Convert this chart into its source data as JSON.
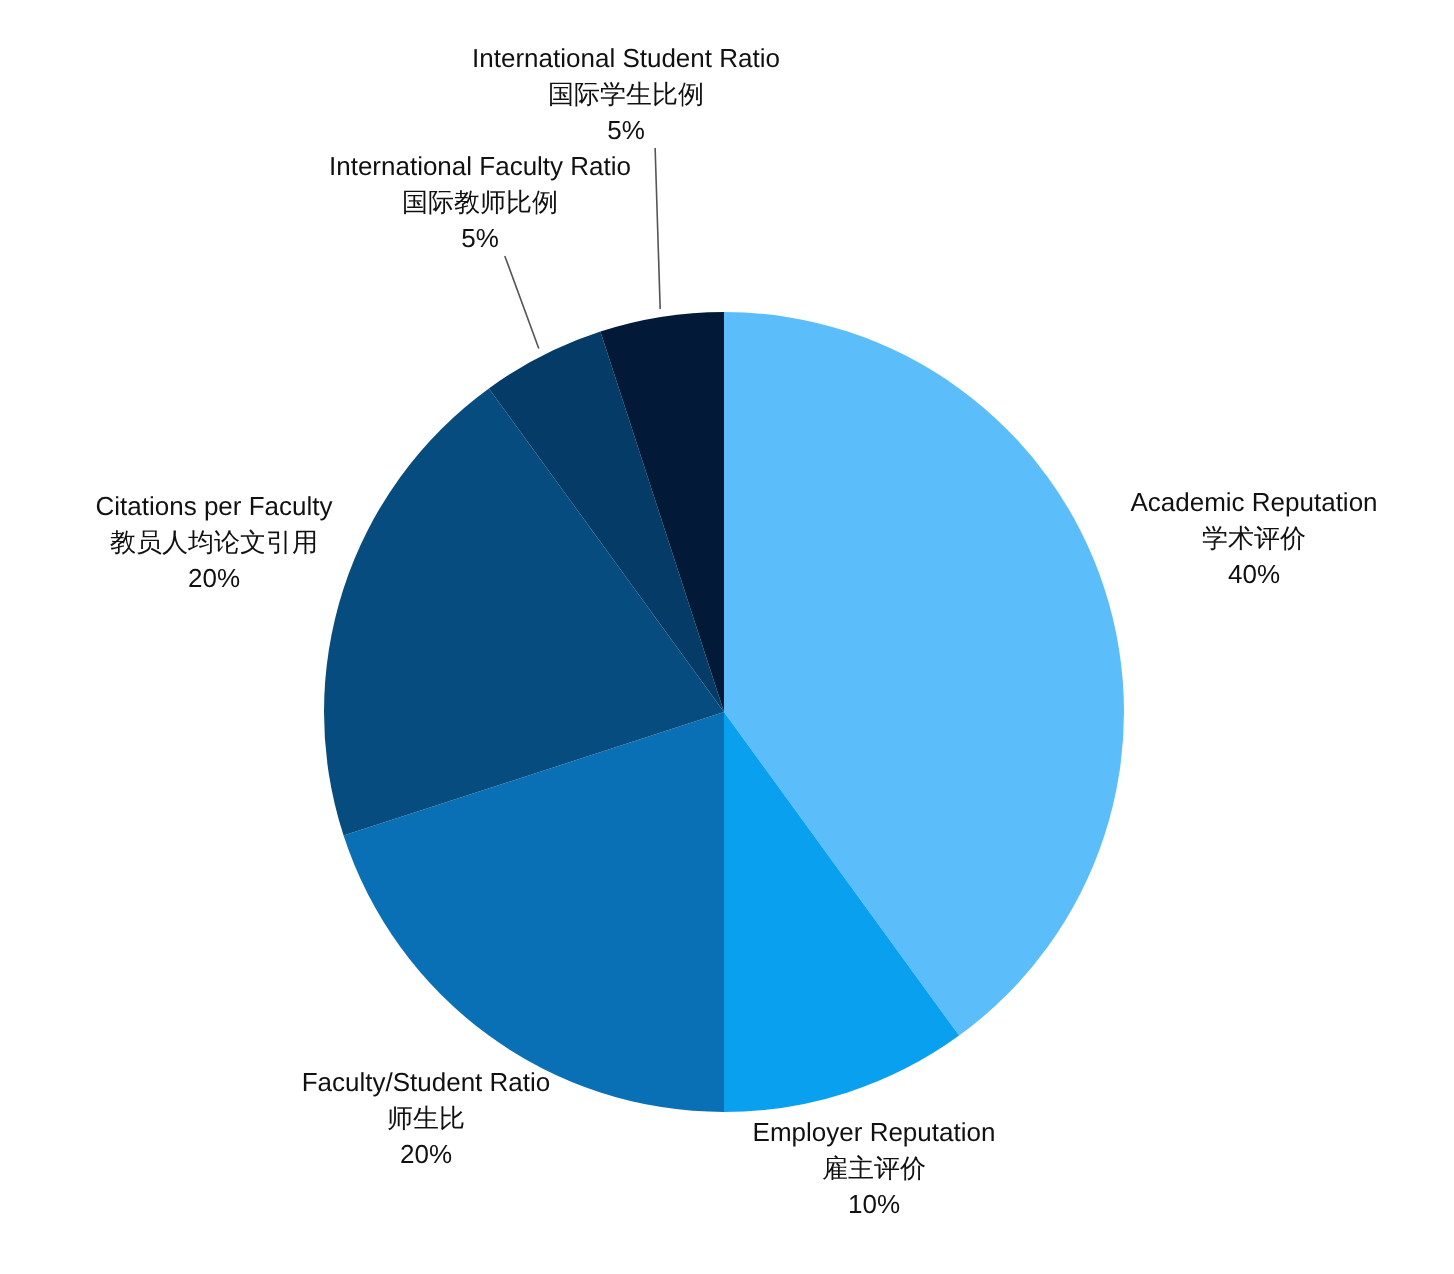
{
  "chart_data": {
    "type": "pie",
    "categories": [
      "Academic Reputation\n学术评价",
      "Employer Reputation\n雇主评价",
      "Faculty/Student Ratio\n师生比",
      "Citations per Faculty\n教员人均论文引用",
      "International Faculty Ratio\n国际教师比例",
      "International Student Ratio\n国际学生比例"
    ],
    "values": [
      40,
      10,
      20,
      20,
      5,
      5
    ],
    "value_labels": [
      "40%",
      "10%",
      "20%",
      "20%",
      "5%",
      "5%"
    ],
    "colors": [
      "#5bbdf9",
      "#08a0ef",
      "#0a70b6",
      "#064c7e",
      "#053b67",
      "#021a38"
    ]
  }
}
